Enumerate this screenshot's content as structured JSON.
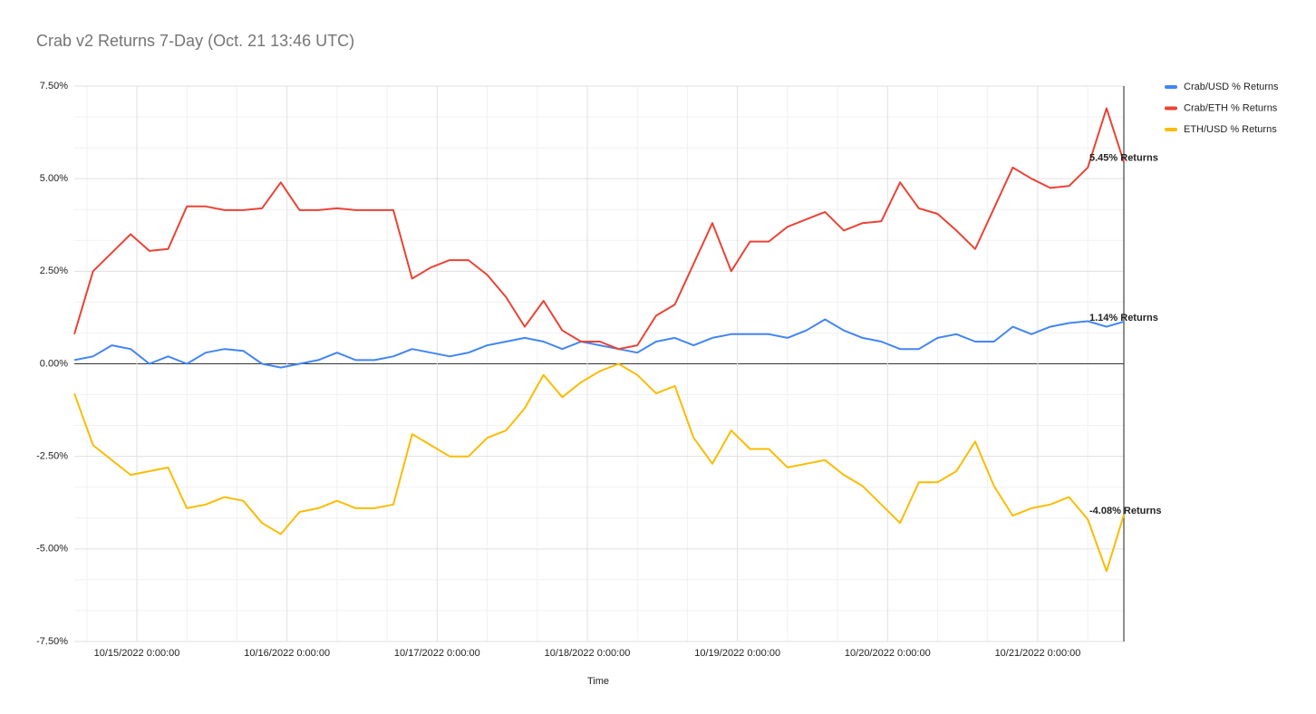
{
  "chart_data": {
    "type": "line",
    "title": "Crab v2 Returns 7-Day (Oct. 21 13:46 UTC)",
    "xlabel": "Time",
    "x": [
      "2022-10-14 14:00",
      "2022-10-14 17:00",
      "2022-10-14 20:00",
      "2022-10-14 23:00",
      "2022-10-15 02:00",
      "2022-10-15 05:00",
      "2022-10-15 08:00",
      "2022-10-15 11:00",
      "2022-10-15 14:00",
      "2022-10-15 17:00",
      "2022-10-15 20:00",
      "2022-10-15 23:00",
      "2022-10-16 02:00",
      "2022-10-16 05:00",
      "2022-10-16 08:00",
      "2022-10-16 11:00",
      "2022-10-16 14:00",
      "2022-10-16 17:00",
      "2022-10-16 20:00",
      "2022-10-16 23:00",
      "2022-10-17 02:00",
      "2022-10-17 05:00",
      "2022-10-17 08:00",
      "2022-10-17 11:00",
      "2022-10-17 14:00",
      "2022-10-17 17:00",
      "2022-10-17 20:00",
      "2022-10-17 23:00",
      "2022-10-18 02:00",
      "2022-10-18 05:00",
      "2022-10-18 08:00",
      "2022-10-18 11:00",
      "2022-10-18 14:00",
      "2022-10-18 17:00",
      "2022-10-18 20:00",
      "2022-10-18 23:00",
      "2022-10-19 02:00",
      "2022-10-19 05:00",
      "2022-10-19 08:00",
      "2022-10-19 11:00",
      "2022-10-19 14:00",
      "2022-10-19 17:00",
      "2022-10-19 20:00",
      "2022-10-19 23:00",
      "2022-10-20 02:00",
      "2022-10-20 05:00",
      "2022-10-20 08:00",
      "2022-10-20 11:00",
      "2022-10-20 14:00",
      "2022-10-20 17:00",
      "2022-10-20 20:00",
      "2022-10-20 23:00",
      "2022-10-21 02:00",
      "2022-10-21 05:00",
      "2022-10-21 08:00",
      "2022-10-21 11:00",
      "2022-10-21 13:46"
    ],
    "series": [
      {
        "name": "Crab/USD % Returns",
        "color": "#4285f4",
        "values": [
          0.1,
          0.2,
          0.5,
          0.4,
          0.0,
          0.2,
          0.0,
          0.3,
          0.4,
          0.35,
          0.0,
          -0.1,
          0.0,
          0.1,
          0.3,
          0.1,
          0.1,
          0.2,
          0.4,
          0.3,
          0.2,
          0.3,
          0.5,
          0.6,
          0.7,
          0.6,
          0.4,
          0.6,
          0.5,
          0.4,
          0.3,
          0.6,
          0.7,
          0.5,
          0.7,
          0.8,
          0.8,
          0.8,
          0.7,
          0.9,
          1.2,
          0.9,
          0.7,
          0.6,
          0.4,
          0.4,
          0.7,
          0.8,
          0.6,
          0.6,
          1.0,
          0.8,
          1.0,
          1.1,
          1.15,
          1.0,
          1.14
        ]
      },
      {
        "name": "Crab/ETH % Returns",
        "color": "#ea4335",
        "values": [
          0.8,
          2.5,
          3.0,
          3.5,
          3.05,
          3.1,
          4.25,
          4.25,
          4.15,
          4.15,
          4.2,
          4.9,
          4.15,
          4.15,
          4.2,
          4.15,
          4.15,
          4.15,
          2.3,
          2.6,
          2.8,
          2.8,
          2.4,
          1.8,
          1.0,
          1.7,
          0.9,
          0.6,
          0.6,
          0.4,
          0.5,
          1.3,
          1.6,
          2.7,
          3.8,
          2.5,
          3.3,
          3.3,
          3.7,
          3.9,
          4.1,
          3.6,
          3.8,
          3.85,
          4.9,
          4.2,
          4.05,
          3.6,
          3.1,
          4.2,
          5.3,
          5.0,
          4.75,
          4.8,
          5.3,
          6.9,
          5.45
        ]
      },
      {
        "name": "ETH/USD % Returns",
        "color": "#fbbc04",
        "values": [
          -0.8,
          -2.2,
          -2.6,
          -3.0,
          -2.9,
          -2.8,
          -3.9,
          -3.8,
          -3.6,
          -3.7,
          -4.3,
          -4.6,
          -4.0,
          -3.9,
          -3.7,
          -3.9,
          -3.9,
          -3.8,
          -1.9,
          -2.2,
          -2.5,
          -2.5,
          -2.0,
          -1.8,
          -1.2,
          -0.3,
          -0.9,
          -0.5,
          -0.2,
          0.0,
          -0.3,
          -0.8,
          -0.6,
          -2.0,
          -2.7,
          -1.8,
          -2.3,
          -2.3,
          -2.8,
          -2.7,
          -2.6,
          -3.0,
          -3.3,
          -3.8,
          -4.3,
          -3.2,
          -3.2,
          -2.9,
          -2.1,
          -3.3,
          -4.1,
          -3.9,
          -3.8,
          -3.6,
          -4.2,
          -5.6,
          -4.08
        ]
      }
    ],
    "annotations": [
      "1.14% Returns",
      "5.45% Returns",
      "-4.08% Returns"
    ],
    "xlim": [
      "2022-10-14 14:00",
      "2022-10-21 13:46"
    ],
    "xticks": [
      {
        "value": "2022-10-15 00:00",
        "label": "10/15/2022 0:00:00"
      },
      {
        "value": "2022-10-16 00:00",
        "label": "10/16/2022 0:00:00"
      },
      {
        "value": "2022-10-17 00:00",
        "label": "10/17/2022 0:00:00"
      },
      {
        "value": "2022-10-18 00:00",
        "label": "10/18/2022 0:00:00"
      },
      {
        "value": "2022-10-19 00:00",
        "label": "10/19/2022 0:00:00"
      },
      {
        "value": "2022-10-20 00:00",
        "label": "10/20/2022 0:00:00"
      },
      {
        "value": "2022-10-21 00:00",
        "label": "10/21/2022 0:00:00"
      }
    ],
    "ylim": [
      -7.5,
      7.5
    ],
    "yticks": [
      {
        "value": -7.5,
        "label": "-7.50%"
      },
      {
        "value": -5,
        "label": "-5.00%"
      },
      {
        "value": -2.5,
        "label": "-2.50%"
      },
      {
        "value": 0,
        "label": "0.00%"
      },
      {
        "value": 2.5,
        "label": "2.50%"
      },
      {
        "value": 5,
        "label": "5.00%"
      },
      {
        "value": 7.5,
        "label": "7.50%"
      }
    ],
    "grid": true,
    "legend": "top-right"
  }
}
